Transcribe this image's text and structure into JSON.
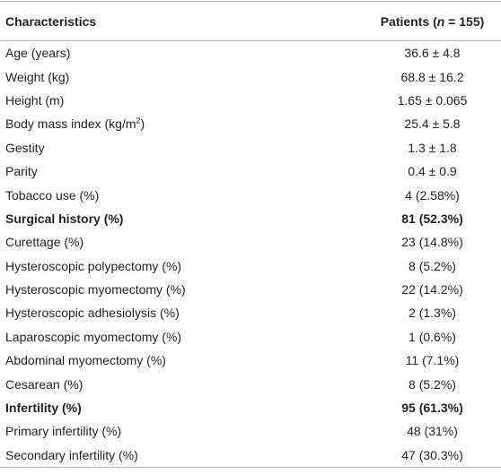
{
  "table": {
    "header": [
      "Characteristics",
      [
        "Patients (",
        "n",
        " = 155)"
      ]
    ],
    "rows": [
      [
        "Age (years)",
        "36.6 ± 4.8"
      ],
      [
        "Weight (kg)",
        "68.8 ± 16.2"
      ],
      [
        "Height (m)",
        "1.65 ± 0.065"
      ],
      [
        [
          "Body mass index (kg/m",
          "2",
          ")"
        ],
        "25.4 ± 5.8"
      ],
      [
        "Gestity",
        "1.3 ± 1.8"
      ],
      [
        "Parity",
        "0.4 ± 0.9"
      ],
      [
        "Tobacco use (%)",
        "4 (2.58%)"
      ],
      [
        "Surgical history (%)",
        "81 (52.3%)"
      ],
      [
        "Curettage (%)",
        "23 (14.8%)"
      ],
      [
        "Hysteroscopic polypectomy (%)",
        "8 (5.2%)"
      ],
      [
        "Hysteroscopic myomectomy (%)",
        "22 (14.2%)"
      ],
      [
        "Hysteroscopic adhesiolysis (%)",
        "2 (1.3%)"
      ],
      [
        "Laparoscopic myomectomy (%)",
        "1 (0.6%)"
      ],
      [
        "Abdominal myomectomy (%)",
        "11 (7.1%)"
      ],
      [
        "Cesarean (%)",
        "8 (5.2%)"
      ],
      [
        "Infertility (%)",
        "95 (61.3%)"
      ],
      [
        "Primary infertility (%)",
        "48 (31%)"
      ],
      [
        "Secondary infertility (%)",
        "47 (30.3%)"
      ]
    ],
    "bold_rows": [
      7,
      15
    ]
  }
}
